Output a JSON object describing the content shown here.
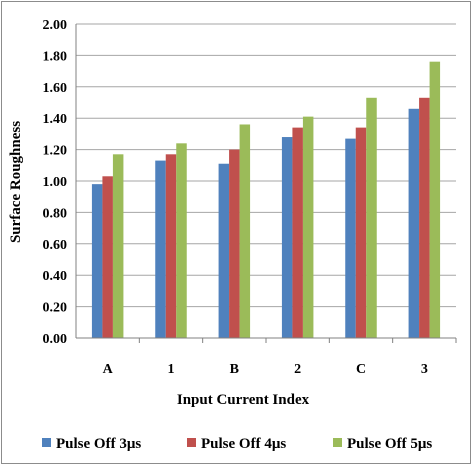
{
  "chart_data": {
    "type": "bar",
    "title": "",
    "xlabel": "Input Current Index",
    "ylabel": "Surface Roughness",
    "ylim": [
      0,
      2.0
    ],
    "y_ticks": [
      "0.00",
      "0.20",
      "0.40",
      "0.60",
      "0.80",
      "1.00",
      "1.20",
      "1.40",
      "1.60",
      "1.80",
      "2.00"
    ],
    "grid": true,
    "legend_position": "bottom",
    "categories": [
      "A",
      "1",
      "B",
      "2",
      "C",
      "3"
    ],
    "series": [
      {
        "name": "Pulse Off 3μs",
        "color": "#4F81BD",
        "values": [
          0.98,
          1.13,
          1.11,
          1.28,
          1.27,
          1.46
        ]
      },
      {
        "name": "Pulse Off 4μs",
        "color": "#C0504D",
        "values": [
          1.03,
          1.17,
          1.2,
          1.34,
          1.34,
          1.53
        ]
      },
      {
        "name": "Pulse Off 5μs",
        "color": "#9BBB59",
        "values": [
          1.17,
          1.24,
          1.36,
          1.41,
          1.53,
          1.76
        ]
      }
    ]
  }
}
